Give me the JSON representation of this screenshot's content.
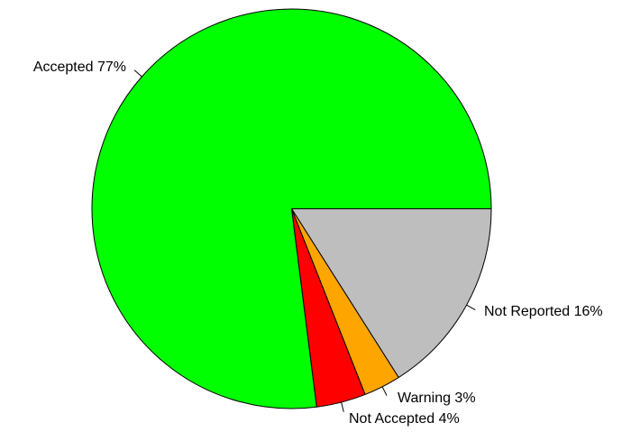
{
  "chart_data": {
    "type": "pie",
    "title": "",
    "direction": "clockwise",
    "start": "east",
    "slices": [
      {
        "label": "Not Reported 16%",
        "value": 16,
        "color": "#BEBEBE"
      },
      {
        "label": "Warning 3%",
        "value": 3,
        "color": "#FFA500"
      },
      {
        "label": "Not Accepted 4%",
        "value": 4,
        "color": "#FF0000"
      },
      {
        "label": "Accepted 77%",
        "value": 77,
        "color": "#00FF00"
      }
    ]
  }
}
